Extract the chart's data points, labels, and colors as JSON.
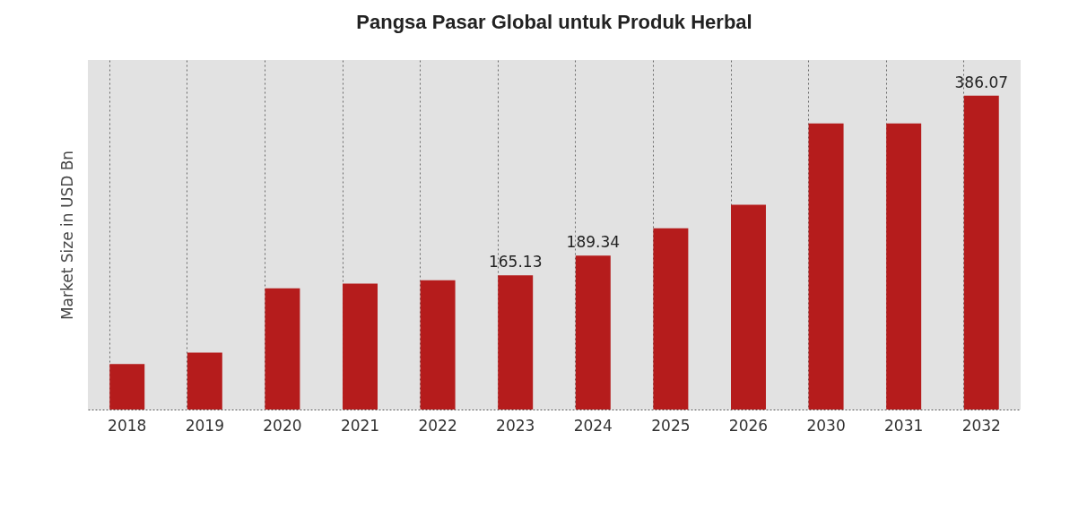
{
  "chart_data": {
    "type": "bar",
    "title": "Pangsa Pasar Global untuk Produk Herbal",
    "ylabel": "Market Size in USD Bn",
    "tick_labels": "x",
    "ylim": [
      0,
      430
    ],
    "grid": "x",
    "color": "#b51c1c",
    "categories": [
      "2018",
      "2019",
      "2020",
      "2021",
      "2022",
      "2023",
      "2024",
      "2025",
      "2026",
      "2030",
      "2031",
      "2032"
    ],
    "values": [
      56,
      70,
      149,
      155,
      159,
      165.13,
      189.34,
      223,
      252,
      352,
      352,
      386.07
    ],
    "value_labels": [
      null,
      null,
      null,
      null,
      null,
      "165.13",
      "189.34",
      null,
      null,
      null,
      null,
      "386.07"
    ]
  }
}
